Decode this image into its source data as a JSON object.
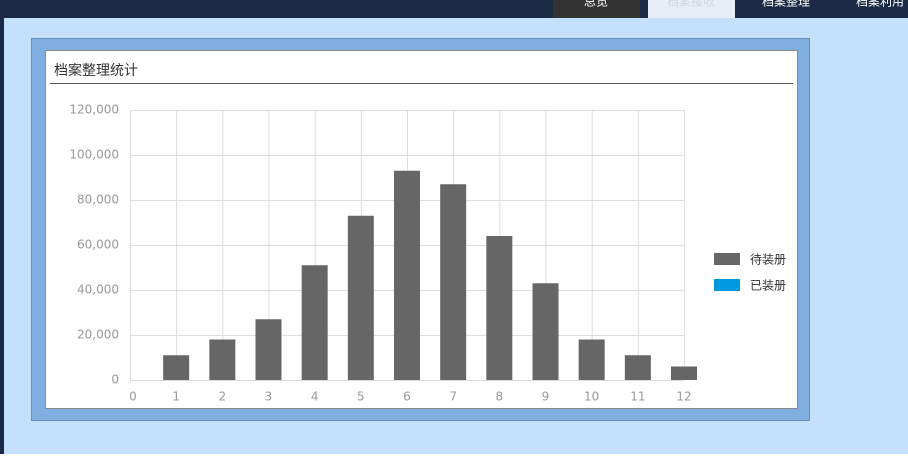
{
  "nav": {
    "tabs": [
      "总览",
      "档案接收",
      "档案整理",
      "档案利用"
    ]
  },
  "chart_data": {
    "type": "bar",
    "stacked": true,
    "title": "档案整理统计",
    "x": [
      1,
      2,
      3,
      4,
      5,
      6,
      7,
      8,
      9,
      10,
      11,
      12
    ],
    "series": [
      {
        "name": "待装册",
        "color": "#666666",
        "values": [
          11000,
          18000,
          27000,
          51000,
          73000,
          93000,
          87000,
          64000,
          43000,
          18000,
          11000,
          6000
        ]
      },
      {
        "name": "已装册",
        "color": "#0099dd",
        "values": [
          0,
          0,
          0,
          0,
          0,
          0,
          0,
          0,
          0,
          0,
          0,
          0
        ]
      }
    ],
    "xlim": [
      0,
      12
    ],
    "xticks": [
      0,
      1,
      2,
      3,
      4,
      5,
      6,
      7,
      8,
      9,
      10,
      11,
      12
    ],
    "ylim": [
      0,
      120000
    ],
    "yticks": [
      0,
      {
        "value": 20000,
        "label": "20,000"
      },
      {
        "value": 40000,
        "label": "40,000"
      },
      {
        "value": 60000,
        "label": "60,000"
      },
      {
        "value": 80000,
        "label": "80,000"
      },
      {
        "value": 100000,
        "label": "100,000"
      },
      {
        "value": 120000,
        "label": "120,000"
      }
    ],
    "grid": true,
    "legend": "right"
  }
}
